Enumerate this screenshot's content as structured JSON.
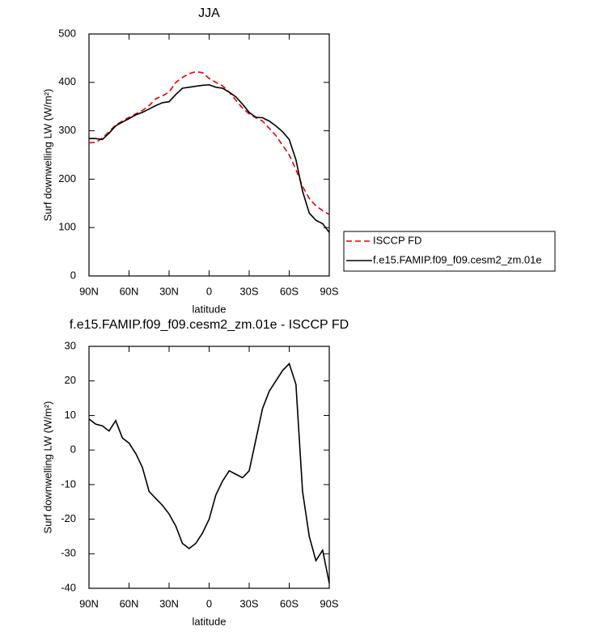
{
  "chart_data": [
    {
      "type": "line",
      "title": "JJA",
      "x_label": "latitude",
      "y_label": "Surf downwelling LW (W/m²)",
      "x": [
        90,
        85,
        80,
        75,
        70,
        65,
        60,
        55,
        50,
        45,
        40,
        35,
        30,
        25,
        20,
        15,
        10,
        5,
        0,
        -5,
        -10,
        -15,
        -20,
        -25,
        -30,
        -35,
        -40,
        -45,
        -50,
        -55,
        -60,
        -65,
        -70,
        -75,
        -80,
        -85,
        -90
      ],
      "series": [
        {
          "name": "ISCCP FD",
          "color": "#e00000",
          "dash": true,
          "values": [
            275,
            276,
            285,
            298,
            312,
            320,
            328,
            335,
            342,
            352,
            366,
            372,
            380,
            400,
            410,
            418,
            422,
            420,
            408,
            400,
            393,
            380,
            363,
            347,
            335,
            327,
            320,
            305,
            290,
            270,
            250,
            220,
            185,
            160,
            145,
            135,
            127
          ]
        },
        {
          "name": "f.e15.FAMIP.f09_f09.cesm2_zm.01e",
          "color": "#000000",
          "dash": false,
          "values": [
            284,
            284,
            282,
            295,
            310,
            318,
            325,
            333,
            338,
            345,
            352,
            358,
            360,
            375,
            388,
            390,
            392,
            394,
            395,
            390,
            388,
            380,
            370,
            355,
            338,
            328,
            327,
            320,
            310,
            298,
            282,
            240,
            175,
            130,
            115,
            108,
            90
          ]
        }
      ],
      "xlim": [
        90,
        -90
      ],
      "xticks": [
        {
          "value": 90,
          "label": "90N"
        },
        {
          "value": 60,
          "label": "60N"
        },
        {
          "value": 30,
          "label": "30N"
        },
        {
          "value": 0,
          "label": "0"
        },
        {
          "value": -30,
          "label": "30S"
        },
        {
          "value": -60,
          "label": "60S"
        },
        {
          "value": -90,
          "label": "90S"
        }
      ],
      "ylim": [
        0,
        500
      ],
      "yticks": [
        0,
        100,
        200,
        300,
        400,
        500
      ],
      "legend": "outside right"
    },
    {
      "type": "line",
      "title": "f.e15.FAMIP.f09_f09.cesm2_zm.01e - ISCCP FD",
      "x_label": "latitude",
      "y_label": "Surf downwelling LW (W/m²)",
      "x": [
        90,
        85,
        80,
        75,
        70,
        65,
        60,
        55,
        50,
        45,
        40,
        35,
        30,
        25,
        20,
        15,
        10,
        5,
        0,
        -5,
        -10,
        -15,
        -20,
        -25,
        -30,
        -35,
        -40,
        -45,
        -50,
        -55,
        -60,
        -65,
        -70,
        -75,
        -80,
        -85,
        -90
      ],
      "series": [
        {
          "color": "#000000",
          "dash": false,
          "values": [
            9,
            7.5,
            7,
            5.5,
            8.5,
            3.5,
            2,
            -1,
            -5,
            -12,
            -14,
            -16,
            -18.5,
            -22,
            -27,
            -28.5,
            -27,
            -24,
            -20,
            -13,
            -9,
            -6,
            -7,
            -8,
            -6,
            3,
            12,
            17,
            20,
            23,
            25,
            19,
            -12,
            -25,
            -32,
            -29,
            -38.5
          ]
        }
      ],
      "xlim": [
        90,
        -90
      ],
      "xticks": [
        {
          "value": 90,
          "label": "90N"
        },
        {
          "value": 60,
          "label": "60N"
        },
        {
          "value": 30,
          "label": "30N"
        },
        {
          "value": 0,
          "label": "0"
        },
        {
          "value": -30,
          "label": "30S"
        },
        {
          "value": -60,
          "label": "60S"
        },
        {
          "value": -90,
          "label": "90S"
        }
      ],
      "ylim": [
        -40,
        30
      ],
      "yticks": [
        -40,
        -30,
        -20,
        -10,
        0,
        10,
        20,
        30
      ]
    }
  ]
}
